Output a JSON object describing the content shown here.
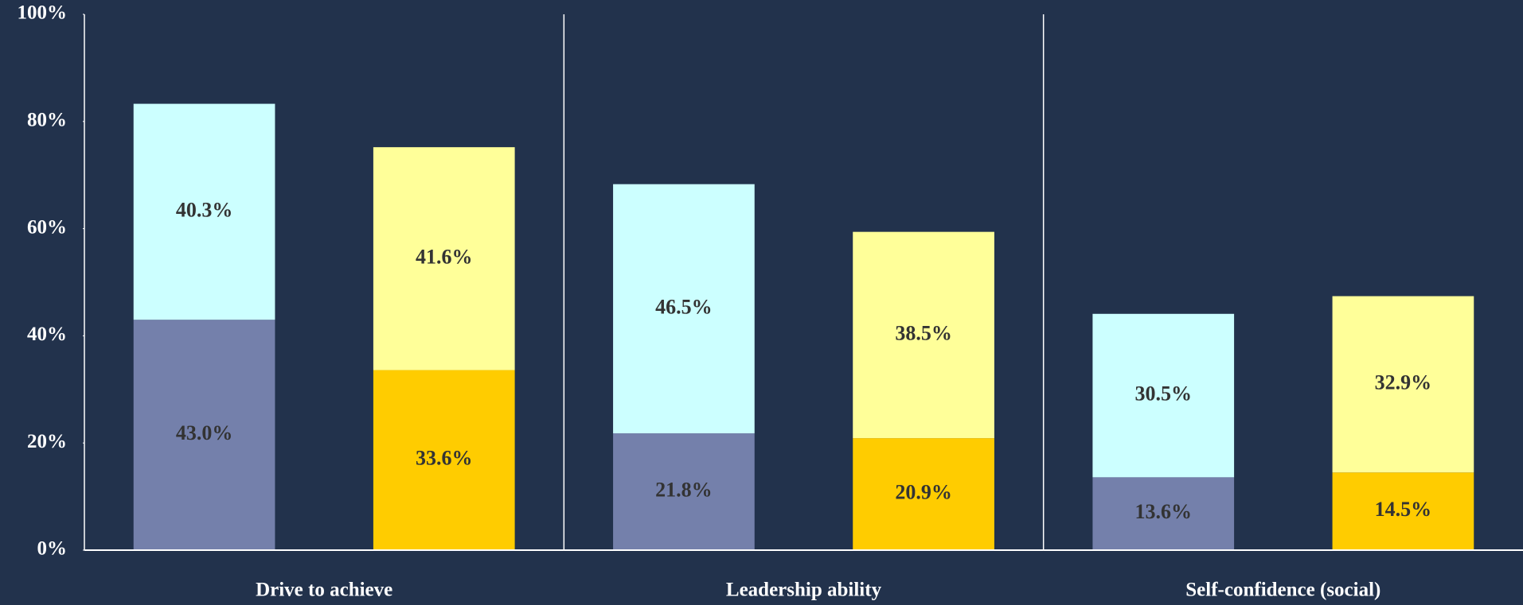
{
  "chart_data": {
    "type": "grouped_stacked_bar",
    "categories": [
      "Drive to achieve",
      "Leadership ability",
      "Self-confidence (social)"
    ],
    "series": [
      {
        "stack": 0,
        "color": "#7480ab",
        "values": [
          43.0,
          21.8,
          13.6
        ],
        "value_labels": [
          "43.0%",
          "21.8%",
          "13.6%"
        ]
      },
      {
        "stack": 0,
        "color": "#ccffff",
        "values": [
          40.3,
          46.5,
          30.5
        ],
        "value_labels": [
          "40.3%",
          "46.5%",
          "30.5%"
        ]
      },
      {
        "stack": 1,
        "color": "#ffcc00",
        "values": [
          33.6,
          20.9,
          14.5
        ],
        "value_labels": [
          "33.6%",
          "20.9%",
          "14.5%"
        ]
      },
      {
        "stack": 1,
        "color": "#ffff99",
        "values": [
          41.6,
          38.5,
          32.9
        ],
        "value_labels": [
          "41.6%",
          "38.5%",
          "32.9%"
        ]
      }
    ],
    "ylim": [
      0,
      100
    ],
    "yticks": [
      {
        "value": 0,
        "label": "0%"
      },
      {
        "value": 20,
        "label": "20%"
      },
      {
        "value": 40,
        "label": "40%"
      },
      {
        "value": 60,
        "label": "60%"
      },
      {
        "value": 80,
        "label": "80%"
      },
      {
        "value": 100,
        "label": "100%"
      }
    ]
  }
}
